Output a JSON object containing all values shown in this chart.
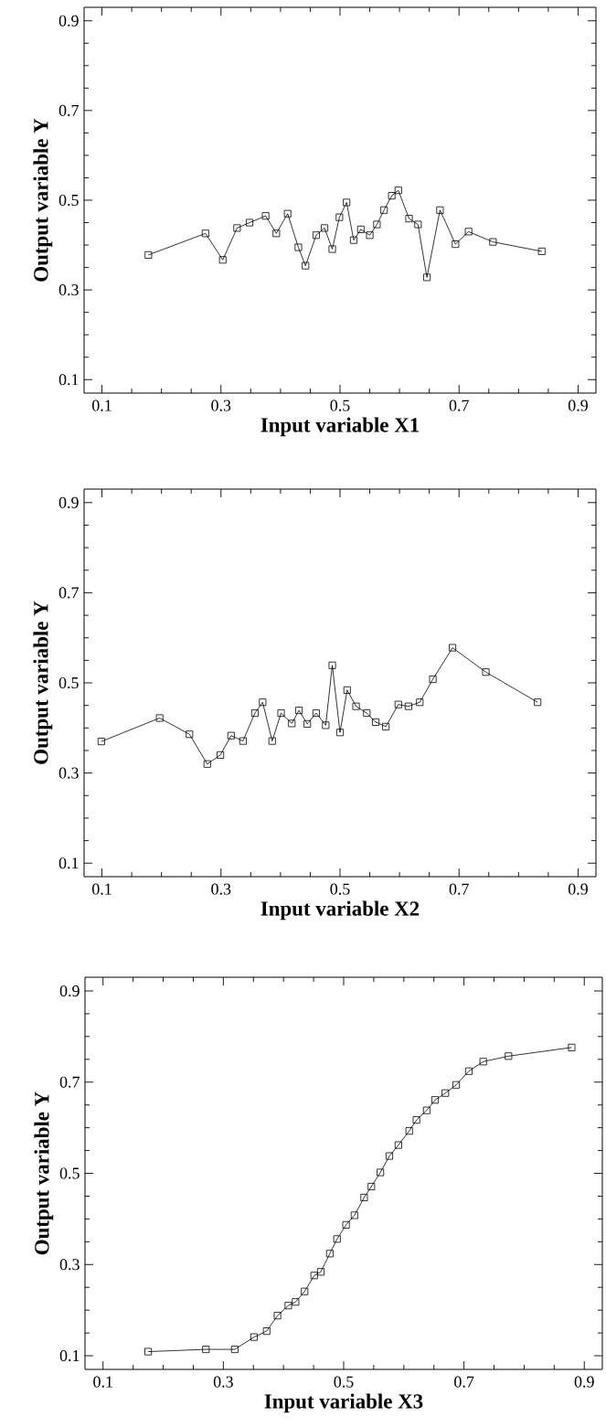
{
  "chart_data": [
    {
      "type": "line",
      "xlabel": "Input variable X1",
      "ylabel": "Output variable Y",
      "color": "#000000",
      "marker": "square",
      "line_style": "solid",
      "xlim": [
        0.07,
        0.93
      ],
      "ylim": [
        0.07,
        0.93
      ],
      "xticks": [
        0.1,
        0.3,
        0.5,
        0.7,
        0.9
      ],
      "yticks": [
        0.1,
        0.3,
        0.5,
        0.7,
        0.9
      ],
      "x": [
        0.178,
        0.274,
        0.303,
        0.327,
        0.348,
        0.375,
        0.393,
        0.412,
        0.43,
        0.442,
        0.46,
        0.474,
        0.487,
        0.499,
        0.511,
        0.523,
        0.535,
        0.55,
        0.562,
        0.574,
        0.587,
        0.598,
        0.616,
        0.631,
        0.646,
        0.668,
        0.694,
        0.716,
        0.757,
        0.839
      ],
      "values": [
        0.378,
        0.426,
        0.367,
        0.438,
        0.45,
        0.465,
        0.426,
        0.47,
        0.395,
        0.354,
        0.422,
        0.438,
        0.391,
        0.462,
        0.495,
        0.411,
        0.435,
        0.422,
        0.446,
        0.478,
        0.51,
        0.522,
        0.459,
        0.446,
        0.328,
        0.478,
        0.402,
        0.43,
        0.407,
        0.386
      ]
    },
    {
      "type": "line",
      "xlabel": "Input variable X2",
      "ylabel": "Output variable Y",
      "color": "#000000",
      "marker": "square",
      "line_style": "solid",
      "xlim": [
        0.07,
        0.93
      ],
      "ylim": [
        0.07,
        0.93
      ],
      "xticks": [
        0.1,
        0.3,
        0.5,
        0.7,
        0.9
      ],
      "yticks": [
        0.1,
        0.3,
        0.5,
        0.7,
        0.9
      ],
      "x": [
        0.099,
        0.197,
        0.247,
        0.277,
        0.299,
        0.317,
        0.337,
        0.357,
        0.37,
        0.386,
        0.401,
        0.419,
        0.431,
        0.445,
        0.46,
        0.476,
        0.487,
        0.5,
        0.512,
        0.527,
        0.545,
        0.56,
        0.577,
        0.598,
        0.615,
        0.634,
        0.656,
        0.689,
        0.745,
        0.832
      ],
      "values": [
        0.37,
        0.422,
        0.386,
        0.32,
        0.34,
        0.383,
        0.371,
        0.433,
        0.457,
        0.371,
        0.433,
        0.41,
        0.439,
        0.409,
        0.433,
        0.406,
        0.539,
        0.39,
        0.484,
        0.448,
        0.433,
        0.413,
        0.403,
        0.452,
        0.448,
        0.457,
        0.508,
        0.578,
        0.524,
        0.457
      ]
    },
    {
      "type": "line",
      "xlabel": "Input variable X3",
      "ylabel": "Output variable Y",
      "color": "#000000",
      "marker": "square",
      "line_style": "solid",
      "xlim": [
        0.07,
        0.93
      ],
      "ylim": [
        0.07,
        0.93
      ],
      "xticks": [
        0.1,
        0.3,
        0.5,
        0.7,
        0.9
      ],
      "yticks": [
        0.1,
        0.3,
        0.5,
        0.7,
        0.9
      ],
      "x": [
        0.175,
        0.271,
        0.319,
        0.351,
        0.372,
        0.39,
        0.408,
        0.42,
        0.435,
        0.451,
        0.462,
        0.477,
        0.489,
        0.504,
        0.518,
        0.534,
        0.546,
        0.561,
        0.576,
        0.591,
        0.609,
        0.621,
        0.638,
        0.652,
        0.669,
        0.687,
        0.708,
        0.732,
        0.774,
        0.879
      ],
      "values": [
        0.109,
        0.114,
        0.114,
        0.141,
        0.154,
        0.188,
        0.21,
        0.218,
        0.241,
        0.276,
        0.284,
        0.324,
        0.356,
        0.387,
        0.408,
        0.447,
        0.471,
        0.502,
        0.538,
        0.562,
        0.593,
        0.617,
        0.638,
        0.661,
        0.676,
        0.694,
        0.724,
        0.745,
        0.757,
        0.776
      ]
    }
  ]
}
